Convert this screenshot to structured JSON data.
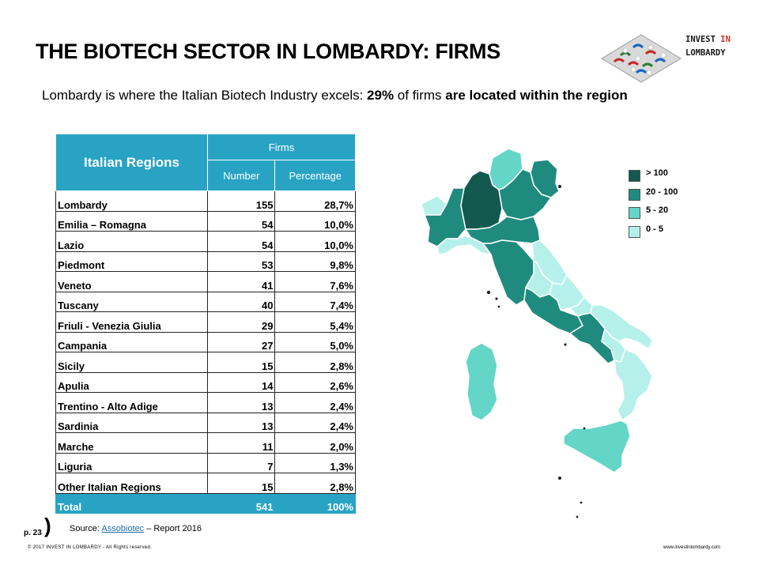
{
  "header": {
    "title": "THE BIOTECH SECTOR IN LOMBARDY: FIRMS",
    "logo_line1_a": "INVEST",
    "logo_line1_b": "IN",
    "logo_line2": "LOMBARDY"
  },
  "subtitle": {
    "part1": "Lombardy is where the Italian Biotech Industry excels: ",
    "bold1": "29%",
    "part2": " of firms ",
    "bold2": "are located within the region"
  },
  "table": {
    "header_region": "Italian Regions",
    "header_firms": "Firms",
    "header_number": "Number",
    "header_percentage": "Percentage",
    "rows": [
      {
        "region": "Lombardy",
        "number": "155",
        "percentage": "28,7%"
      },
      {
        "region": "Emilia – Romagna",
        "number": "54",
        "percentage": "10,0%"
      },
      {
        "region": "Lazio",
        "number": "54",
        "percentage": "10,0%"
      },
      {
        "region": "Piedmont",
        "number": "53",
        "percentage": "9,8%"
      },
      {
        "region": "Veneto",
        "number": "41",
        "percentage": "7,6%"
      },
      {
        "region": "Tuscany",
        "number": "40",
        "percentage": "7,4%"
      },
      {
        "region": "Friuli - Venezia Giulia",
        "number": "29",
        "percentage": "5,4%"
      },
      {
        "region": "Campania",
        "number": "27",
        "percentage": "5,0%"
      },
      {
        "region": "Sicily",
        "number": "15",
        "percentage": "2,8%"
      },
      {
        "region": "Apulia",
        "number": "14",
        "percentage": "2,6%"
      },
      {
        "region": "Trentino - Alto Adige",
        "number": "13",
        "percentage": "2,4%"
      },
      {
        "region": "Sardinia",
        "number": "13",
        "percentage": "2,4%"
      },
      {
        "region": "Marche",
        "number": "11",
        "percentage": "2,0%"
      },
      {
        "region": "Liguria",
        "number": "7",
        "percentage": "1,3%"
      },
      {
        "region": "Other Italian Regions",
        "number": "15",
        "percentage": "2,8%"
      }
    ],
    "total": {
      "region": "Total",
      "number": "541",
      "percentage": "100%"
    }
  },
  "legend": [
    {
      "label": "> 100",
      "color": "#13594f"
    },
    {
      "label": "20 - 100",
      "color": "#1f8b7e"
    },
    {
      "label": "5 - 20",
      "color": "#64d6c7"
    },
    {
      "label": "0 - 5",
      "color": "#b5f1ea"
    }
  ],
  "colors": {
    "table_header": "#29a3c4",
    "tier_gt100": "#13594f",
    "tier_20_100": "#1f8b7e",
    "tier_5_20": "#64d6c7",
    "tier_0_5": "#b5f1ea"
  },
  "footer": {
    "page": "p. 23",
    "source_prefix": "Source: ",
    "source_link": "Assobiotec",
    "source_suffix": " – Report 2016",
    "copyright": "© 2017 INVEST IN LOMBARDY - All Rights reserved.",
    "website": "www.investinlombardy.com"
  }
}
